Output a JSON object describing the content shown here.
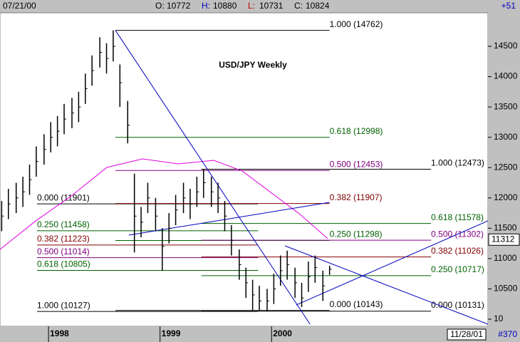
{
  "chart_data": {
    "type": "ohlc",
    "title": "USD/JPY Weekly",
    "header": {
      "date": "07/21/00",
      "change": "+51",
      "fields": [
        {
          "label": "O:",
          "value": 10772,
          "color": "#000000"
        },
        {
          "label": "H:",
          "value": 10880,
          "color": "#0000c0"
        },
        {
          "label": "L:",
          "value": 10731,
          "color": "#c00000"
        },
        {
          "label": "C:",
          "value": 10824,
          "color": "#000000"
        }
      ]
    },
    "footer": {
      "date": "11/28/01",
      "count": "#370"
    },
    "price_marker": 11312,
    "xlim": [
      1997.565,
      2001.94
    ],
    "xticks": [
      1998,
      1999,
      2000
    ],
    "ylim": [
      9882,
      15052
    ],
    "yticks": [
      {
        "value": 10000,
        "label": "10"
      },
      10500,
      11000,
      11500,
      12000,
      12500,
      13000,
      13500,
      14000,
      14500
    ],
    "bar_color": "#000000",
    "x": [
      1997.58,
      1997.64,
      1997.71,
      1997.77,
      1997.83,
      1997.89,
      1997.96,
      1998.02,
      1998.08,
      1998.14,
      1998.21,
      1998.27,
      1998.33,
      1998.39,
      1998.46,
      1998.52,
      1998.58,
      1998.64,
      1998.71,
      1998.77,
      1998.83,
      1998.89,
      1998.96,
      1999.02,
      1999.08,
      1999.14,
      1999.21,
      1999.27,
      1999.33,
      1999.39,
      1999.46,
      1999.52,
      1999.58,
      1999.64,
      1999.71,
      1999.77,
      1999.83,
      1999.89,
      1999.96,
      2000.02,
      2000.08,
      2000.14,
      2000.21,
      2000.27,
      2000.33,
      2000.39,
      2000.46,
      2000.52
    ],
    "high": [
      11950,
      12150,
      12250,
      12350,
      12550,
      12850,
      13050,
      13250,
      13350,
      13550,
      13650,
      13750,
      14050,
      14350,
      14650,
      14550,
      14762,
      14200,
      13600,
      12400,
      11850,
      12250,
      12000,
      11500,
      11750,
      12050,
      12250,
      12150,
      12350,
      12473,
      12350,
      12250,
      11950,
      11550,
      11150,
      10850,
      10650,
      10550,
      10500,
      10750,
      11050,
      11130,
      10850,
      10600,
      10950,
      11050,
      10800,
      10880
    ],
    "low": [
      11450,
      11650,
      11750,
      11850,
      12050,
      12350,
      12550,
      12750,
      12850,
      13050,
      13150,
      13250,
      13550,
      13850,
      14150,
      14050,
      14250,
      13500,
      12900,
      11100,
      11350,
      11750,
      11450,
      10800,
      11250,
      11550,
      11750,
      11650,
      11850,
      12000,
      11850,
      11750,
      11450,
      11050,
      10650,
      10350,
      10150,
      10150,
      10127,
      10250,
      10550,
      10650,
      10350,
      10200,
      10450,
      10600,
      10300,
      10731
    ],
    "close": [
      11700,
      11900,
      12000,
      12100,
      12300,
      12600,
      12800,
      13000,
      13100,
      13300,
      13400,
      13500,
      13800,
      14100,
      14400,
      14300,
      14500,
      13900,
      13200,
      11700,
      11600,
      12000,
      11700,
      11200,
      11500,
      11800,
      12000,
      11900,
      12100,
      12250,
      12100,
      12000,
      11700,
      11300,
      10900,
      10600,
      10400,
      10300,
      10300,
      10500,
      10800,
      10900,
      10600,
      10350,
      10700,
      10850,
      10550,
      10824
    ],
    "lines": [
      {
        "color": "#e000e0",
        "x": [
          1997.565,
          1997.885,
          1998.204,
          1998.523,
          1998.843,
          1999.162,
          1999.482,
          1999.738,
          1999.993,
          2000.249,
          2000.504
        ],
        "values": [
          11151,
          11620,
          12032,
          12502,
          12643,
          12561,
          12620,
          12443,
          12090,
          11738,
          11327
        ]
      },
      {
        "color": "#0000c0",
        "x": [
          1998.6,
          2000.345
        ],
        "values": [
          14762,
          9917
        ]
      },
      {
        "color": "#0000c0",
        "x": [
          1998.72,
          2000.52
        ],
        "values": [
          11386,
          11926
        ]
      },
      {
        "color": "#0000c0",
        "x": [
          2000.12,
          2001.94
        ],
        "values": [
          11210,
          9917
        ]
      },
      {
        "color": "#0000c0",
        "x": [
          2000.22,
          2001.94
        ],
        "values": [
          10234,
          11621
        ]
      }
    ],
    "fib_sets": [
      {
        "label_at": "start",
        "x": [
          1997.897,
          1999.88
        ],
        "levels": [
          {
            "label": "0.000 (11901)",
            "value": 11901,
            "color": "#000000"
          },
          {
            "label": "0.250 (11458)",
            "value": 11458,
            "color": "#006000"
          },
          {
            "label": "0.382 (11223)",
            "value": 11223,
            "color": "#800000"
          },
          {
            "label": "0.500 (11014)",
            "value": 11014,
            "color": "#800080"
          },
          {
            "label": "0.618 (10805)",
            "value": 10805,
            "color": "#006000"
          },
          {
            "label": "1.000 (10127)",
            "value": 10127,
            "color": "#000000"
          }
        ]
      },
      {
        "label_at": "end",
        "x": [
          1998.6,
          2000.52
        ],
        "levels": [
          {
            "label": "1.000 (14762)",
            "value": 14762,
            "color": "#000000"
          },
          {
            "label": "0.618 (12998)",
            "value": 12998,
            "color": "#006000"
          },
          {
            "label": "0.500 (12453)",
            "value": 12453,
            "color": "#800080"
          },
          {
            "label": "0.382 (11907)",
            "value": 11907,
            "color": "#800000"
          },
          {
            "label": "0.250 (11298)",
            "value": 11298,
            "color": "#006000"
          },
          {
            "label": "0.000 (10143)",
            "value": 10143,
            "color": "#000000"
          }
        ]
      },
      {
        "label_at": "end",
        "x": [
          1999.37,
          2001.43
        ],
        "levels": [
          {
            "label": "1.000 (12473)",
            "value": 12473,
            "color": "#000000"
          },
          {
            "label": "0.618 (11578)",
            "value": 11578,
            "color": "#006000"
          },
          {
            "label": "0.500 (11302)",
            "value": 11302,
            "color": "#800080"
          },
          {
            "label": "0.382 (11026)",
            "value": 11026,
            "color": "#800000"
          },
          {
            "label": "0.250 (10717)",
            "value": 10717,
            "color": "#006000"
          },
          {
            "label": "0.000 (10131)",
            "value": 10131,
            "color": "#000000"
          }
        ]
      }
    ]
  }
}
